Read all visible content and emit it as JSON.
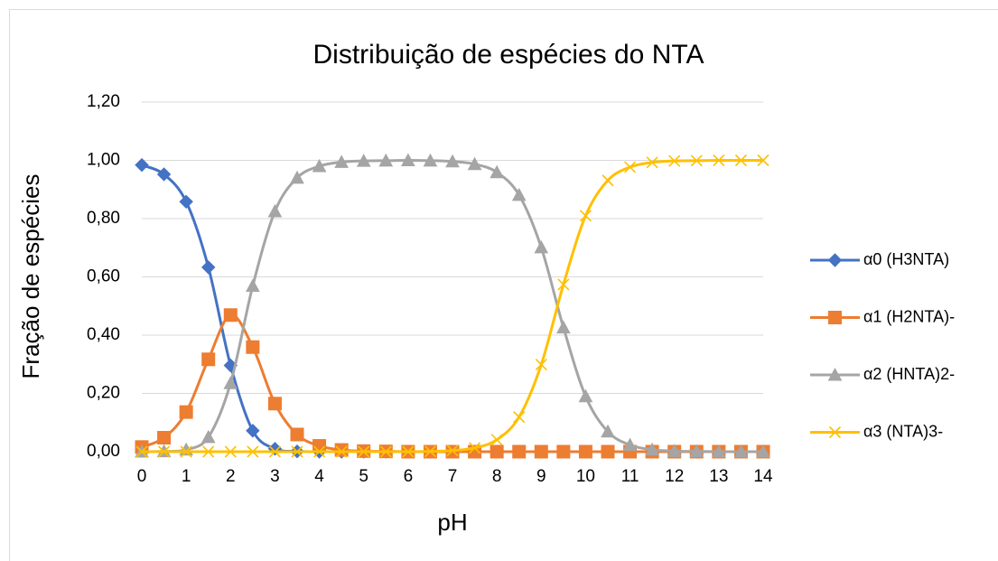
{
  "chart_data": {
    "type": "line",
    "title": "Distribuição de espécies do NTA",
    "x_label": "pH",
    "y_label": "Fração de espécies",
    "x": [
      0,
      0.5,
      1,
      1.5,
      2,
      2.5,
      3,
      3.5,
      4,
      4.5,
      5,
      5.5,
      6,
      6.5,
      7,
      7.5,
      8,
      8.5,
      9,
      9.5,
      10,
      10.5,
      11,
      11.5,
      12,
      12.5,
      13,
      13.5,
      14
    ],
    "xlim": [
      0,
      14
    ],
    "xticks": [
      0,
      1,
      2,
      3,
      4,
      5,
      6,
      7,
      8,
      9,
      10,
      11,
      12,
      13,
      14
    ],
    "ylim": [
      0,
      1.2
    ],
    "yticks": [
      {
        "value": 0,
        "label": "0,00"
      },
      {
        "value": 0.2,
        "label": "0,20"
      },
      {
        "value": 0.4,
        "label": "0,40"
      },
      {
        "value": 0.6,
        "label": "0,60"
      },
      {
        "value": 0.8,
        "label": "0,80"
      },
      {
        "value": 1.0,
        "label": "1,00"
      },
      {
        "value": 1.2,
        "label": "1,20"
      }
    ],
    "grid": true,
    "legend": "right",
    "series": [
      {
        "name": "α0 (H3NTA)",
        "color": "#4472c4",
        "marker": "diamond",
        "values": [
          0.984,
          0.952,
          0.858,
          0.633,
          0.296,
          0.072,
          0.01,
          0.001,
          0,
          0,
          0,
          0,
          0,
          0,
          0,
          0,
          0,
          0,
          0,
          0,
          0,
          0,
          0,
          0,
          0,
          0,
          0,
          0,
          0
        ]
      },
      {
        "name": "α1 (H2NTA)-",
        "color": "#ed7d31",
        "marker": "square",
        "values": [
          0.016,
          0.048,
          0.136,
          0.317,
          0.469,
          0.359,
          0.165,
          0.059,
          0.02,
          0.006,
          0.002,
          0.001,
          0,
          0,
          0,
          0,
          0,
          0,
          0,
          0,
          0,
          0,
          0,
          0,
          0,
          0,
          0,
          0,
          0
        ]
      },
      {
        "name": "α2 (HNTA)2-",
        "color": "#a5a5a5",
        "marker": "triangle",
        "values": [
          0,
          0.001,
          0.007,
          0.05,
          0.235,
          0.569,
          0.825,
          0.94,
          0.98,
          0.994,
          0.998,
          0.999,
          1.0,
          0.999,
          0.996,
          0.987,
          0.959,
          0.881,
          0.701,
          0.426,
          0.19,
          0.069,
          0.023,
          0.007,
          0.002,
          0.001,
          0,
          0,
          0
        ]
      },
      {
        "name": "α3 (NTA)3-",
        "color": "#ffc000",
        "marker": "x",
        "values": [
          0,
          0,
          0,
          0,
          0,
          0,
          0,
          0,
          0,
          0,
          0,
          0,
          0,
          0.001,
          0.004,
          0.013,
          0.041,
          0.119,
          0.299,
          0.574,
          0.81,
          0.931,
          0.977,
          0.993,
          0.998,
          0.999,
          1.0,
          1.0,
          1.0
        ]
      }
    ]
  }
}
